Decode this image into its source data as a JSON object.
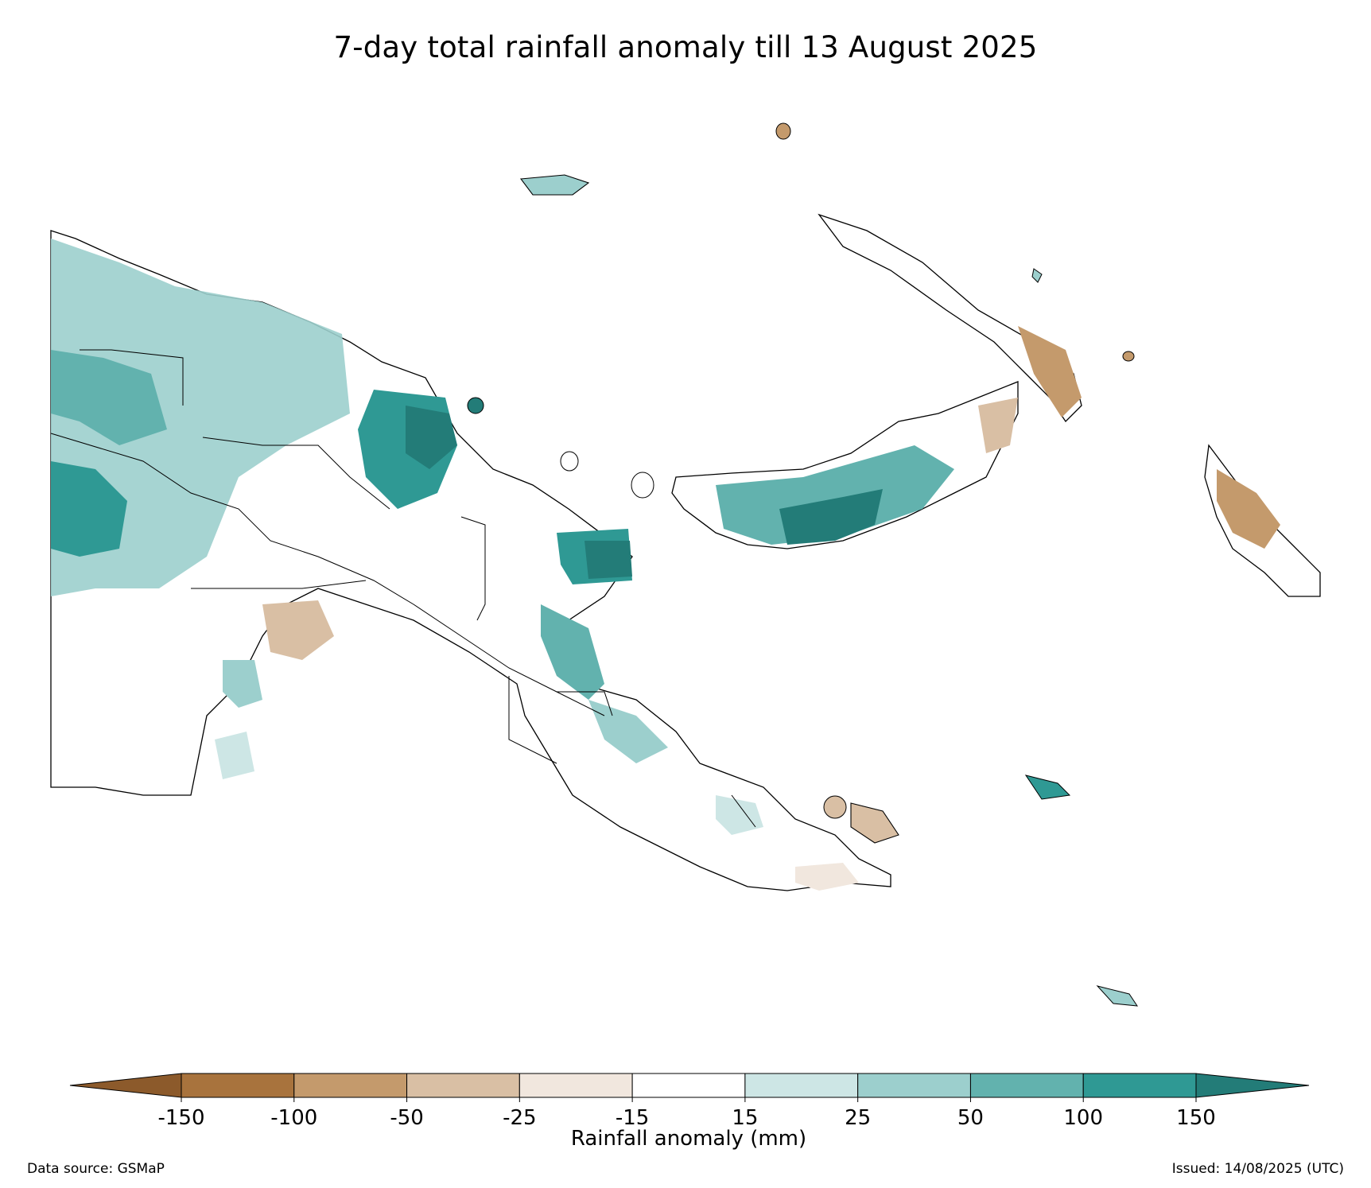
{
  "title": "7-day total rainfall anomaly till 13 August 2025",
  "colorbar": {
    "label": "Rainfall anomaly (mm)",
    "ticks": [
      "-150",
      "-100",
      "-50",
      "-25",
      "-15",
      "15",
      "25",
      "50",
      "100",
      "150"
    ],
    "bins": [
      {
        "range": "< -150",
        "color": "#8c5a2b"
      },
      {
        "range": "-150 to -100",
        "color": "#a8733d"
      },
      {
        "range": "-100 to -50",
        "color": "#c49a6c"
      },
      {
        "range": "-50 to -25",
        "color": "#d9bfa4"
      },
      {
        "range": "-25 to -15",
        "color": "#f1e7de"
      },
      {
        "range": "-15 to 15",
        "color": "#ffffff"
      },
      {
        "range": "15 to 25",
        "color": "#cde6e5"
      },
      {
        "range": "25 to 50",
        "color": "#9ccfcd"
      },
      {
        "range": "50 to 100",
        "color": "#62b2ae"
      },
      {
        "range": "100 to 150",
        "color": "#2f9994"
      },
      {
        "range": "> 150",
        "color": "#237c78"
      }
    ]
  },
  "footer": {
    "source": "Data source: GSMaP",
    "issued": "Issued: 14/08/2025 (UTC)"
  }
}
